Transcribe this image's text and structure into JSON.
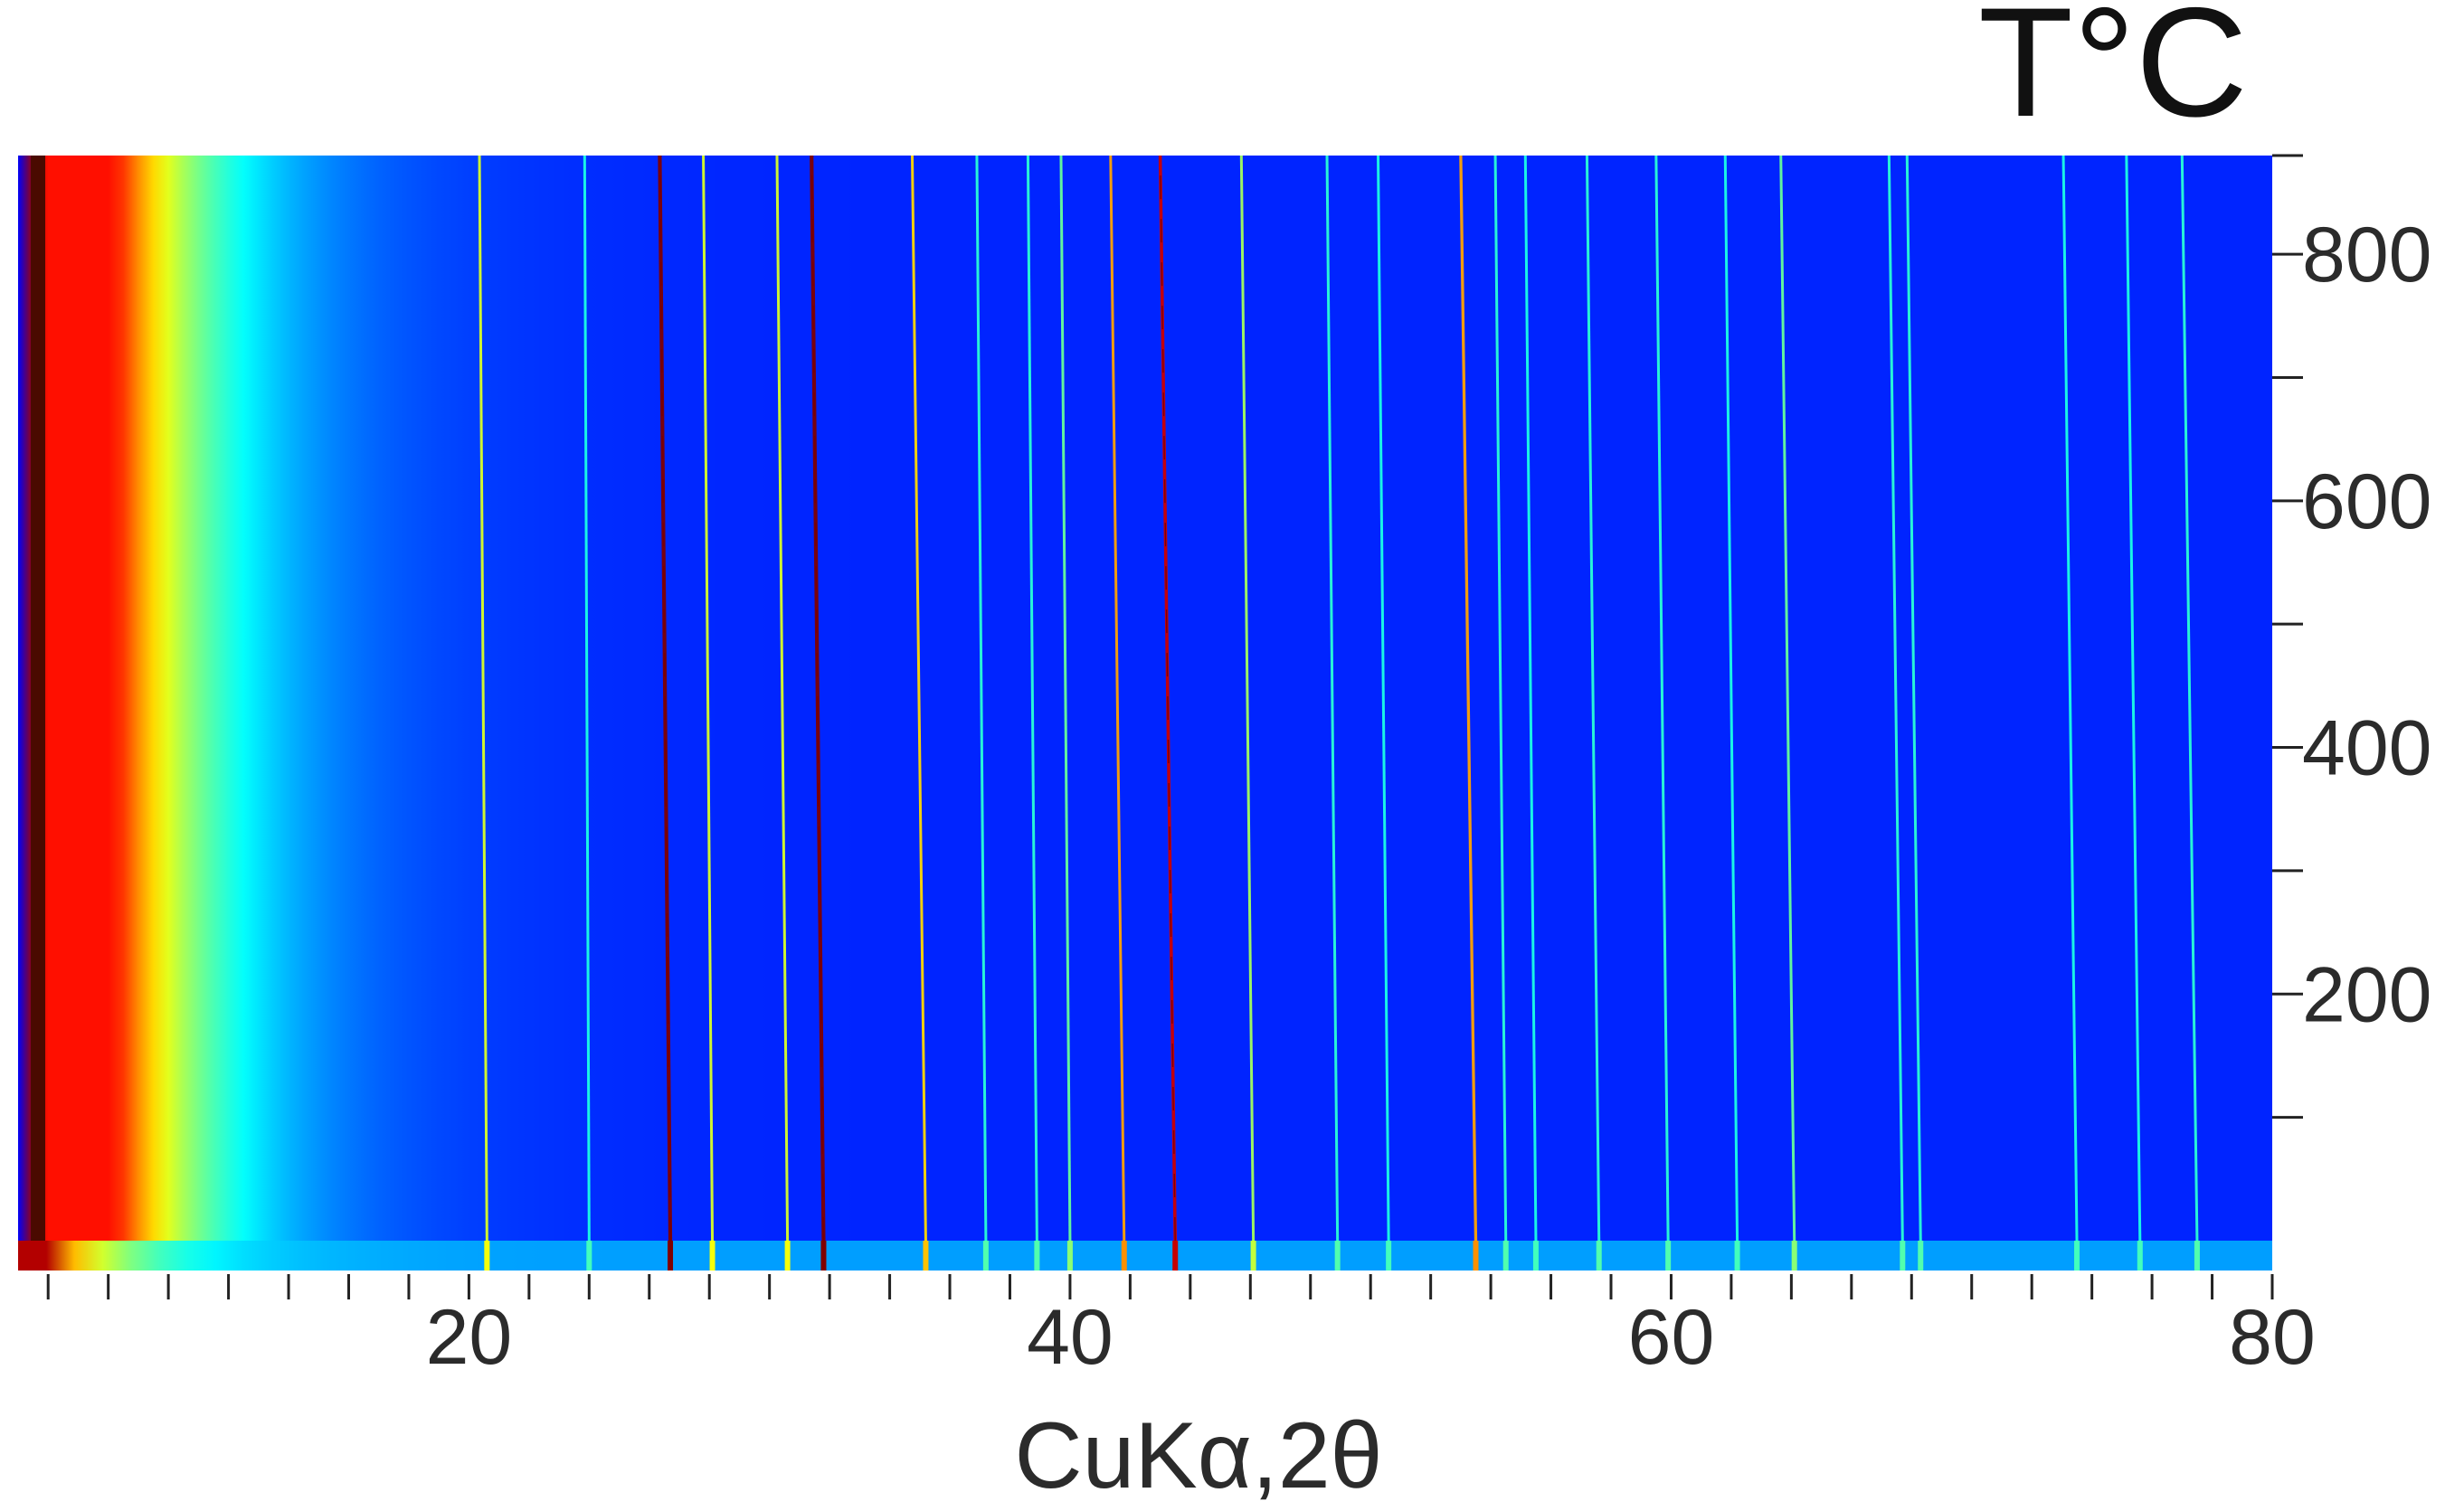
{
  "chart_data": {
    "type": "heatmap",
    "title": "",
    "xlabel": "CuKα,2θ",
    "ylabel": "T°C",
    "xlim": [
      5,
      80
    ],
    "ylim": [
      0,
      880
    ],
    "x_ticks": [
      20,
      40,
      60,
      80
    ],
    "y_ticks": [
      200,
      400,
      600,
      800
    ],
    "x_minor_step": 2,
    "y_minor_step": 100,
    "grid": false,
    "colormap": "jet",
    "peaks": [
      {
        "x": 20.6,
        "drift": 0.25,
        "i": 0.45,
        "w": 0.1
      },
      {
        "x": 24.0,
        "drift": 0.15,
        "i": 0.2,
        "w": 0.08
      },
      {
        "x": 26.7,
        "drift": 0.35,
        "i": 1.0,
        "w": 0.14
      },
      {
        "x": 28.1,
        "drift": 0.3,
        "i": 0.45,
        "w": 0.1
      },
      {
        "x": 30.6,
        "drift": 0.35,
        "i": 0.45,
        "w": 0.1
      },
      {
        "x": 31.8,
        "drift": 0.4,
        "i": 1.0,
        "w": 0.14
      },
      {
        "x": 35.2,
        "drift": 0.45,
        "i": 0.55,
        "w": 0.1
      },
      {
        "x": 37.2,
        "drift": 0.3,
        "i": 0.22,
        "w": 0.08
      },
      {
        "x": 38.9,
        "drift": 0.3,
        "i": 0.22,
        "w": 0.08
      },
      {
        "x": 40.0,
        "drift": 0.3,
        "i": 0.3,
        "w": 0.08
      },
      {
        "x": 41.8,
        "drift": 0.45,
        "i": 0.62,
        "w": 0.1
      },
      {
        "x": 43.5,
        "drift": 0.5,
        "i": 0.9,
        "w": 0.12
      },
      {
        "x": 46.1,
        "drift": 0.4,
        "i": 0.38,
        "w": 0.09
      },
      {
        "x": 48.9,
        "drift": 0.35,
        "i": 0.22,
        "w": 0.08
      },
      {
        "x": 50.6,
        "drift": 0.35,
        "i": 0.2,
        "w": 0.08
      },
      {
        "x": 53.5,
        "drift": 0.5,
        "i": 0.62,
        "w": 0.11
      },
      {
        "x": 54.5,
        "drift": 0.35,
        "i": 0.22,
        "w": 0.08
      },
      {
        "x": 55.5,
        "drift": 0.35,
        "i": 0.2,
        "w": 0.08
      },
      {
        "x": 57.6,
        "drift": 0.4,
        "i": 0.22,
        "w": 0.08
      },
      {
        "x": 59.9,
        "drift": 0.4,
        "i": 0.22,
        "w": 0.08
      },
      {
        "x": 62.2,
        "drift": 0.4,
        "i": 0.2,
        "w": 0.08
      },
      {
        "x": 64.1,
        "drift": 0.45,
        "i": 0.3,
        "w": 0.08
      },
      {
        "x": 67.7,
        "drift": 0.45,
        "i": 0.22,
        "w": 0.08
      },
      {
        "x": 68.3,
        "drift": 0.45,
        "i": 0.22,
        "w": 0.08
      },
      {
        "x": 73.5,
        "drift": 0.45,
        "i": 0.2,
        "w": 0.08
      },
      {
        "x": 75.6,
        "drift": 0.45,
        "i": 0.2,
        "w": 0.08
      },
      {
        "x": 77.5,
        "drift": 0.5,
        "i": 0.22,
        "w": 0.08
      }
    ]
  }
}
